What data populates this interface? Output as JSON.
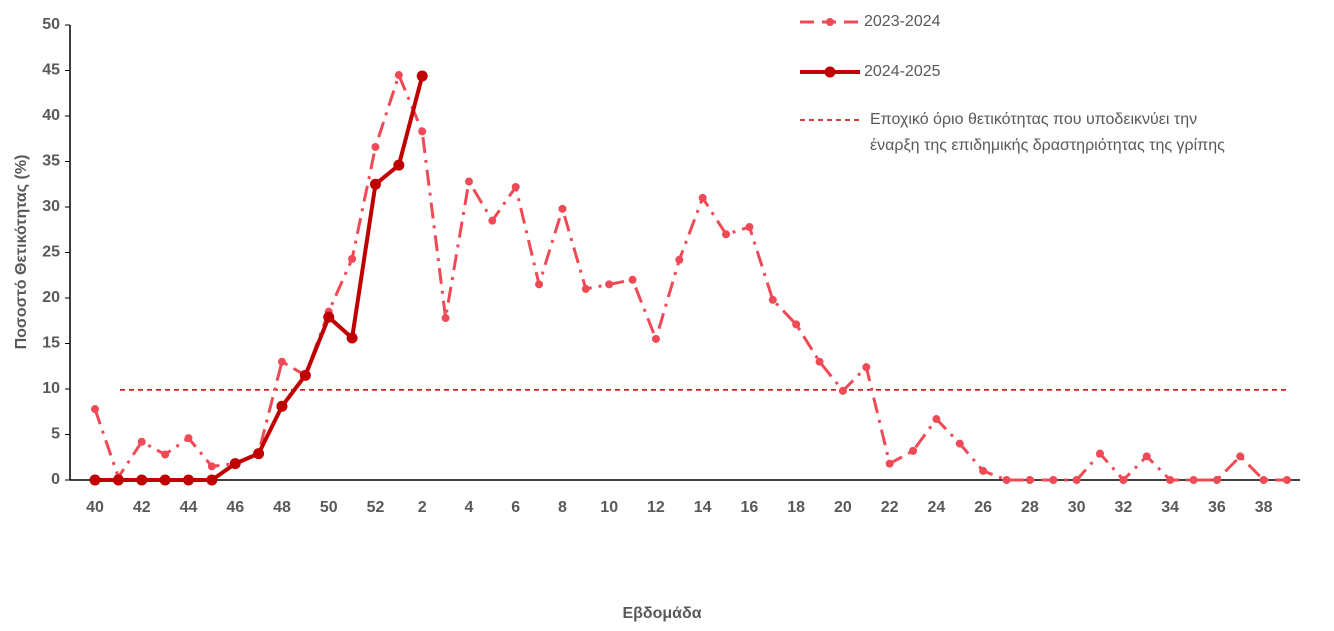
{
  "chart_data": {
    "type": "line",
    "y_label": "Ποσοστό Θετικότητας (%)",
    "x_label": "Εβδομάδα",
    "categories": [
      "40",
      null,
      "42",
      null,
      "44",
      null,
      "46",
      null,
      "48",
      null,
      "50",
      null,
      "52",
      null,
      "2",
      null,
      "4",
      null,
      "6",
      null,
      "8",
      null,
      "10",
      null,
      "12",
      null,
      "14",
      null,
      "16",
      null,
      "18",
      null,
      "20",
      null,
      "22",
      null,
      "24",
      null,
      "26",
      null,
      "28",
      null,
      "30",
      null,
      "32",
      null,
      "34",
      null,
      "36",
      null,
      "38",
      null
    ],
    "series": [
      {
        "name": "2023-2024",
        "color": "#ef4a55",
        "dashed": true,
        "values": [
          7.8,
          0.3,
          4.2,
          2.8,
          4.6,
          1.5,
          1.8,
          3.0,
          13.0,
          11.5,
          18.5,
          24.3,
          36.6,
          44.5,
          38.3,
          17.8,
          32.8,
          28.5,
          32.2,
          21.5,
          29.8,
          21.0,
          21.5,
          22.0,
          15.5,
          24.2,
          31.0,
          27.0,
          27.8,
          19.8,
          17.1,
          13.0,
          9.8,
          12.4,
          1.8,
          3.2,
          6.7,
          4.0,
          1.0,
          0,
          0,
          0,
          0,
          2.9,
          0,
          2.6,
          0,
          0,
          0,
          2.6,
          0,
          0
        ]
      },
      {
        "name": "2024-2025",
        "color": "#c00000",
        "dashed": false,
        "values": [
          0,
          0,
          0,
          0,
          0,
          0,
          1.8,
          2.9,
          8.1,
          11.5,
          17.9,
          15.6,
          32.5,
          34.6,
          44.4,
          null,
          null,
          null,
          null,
          null,
          null,
          null,
          null,
          null,
          null,
          null,
          null,
          null,
          null,
          null,
          null,
          null,
          null,
          null,
          null,
          null,
          null,
          null,
          null,
          null,
          null,
          null,
          null,
          null,
          null,
          null,
          null,
          null,
          null,
          null,
          null,
          null
        ]
      }
    ],
    "threshold": {
      "name": [
        "Εποχικό όριο θετικότητας που υποδεικνύει την",
        "έναρξη της επιδημικής δραστηριότητας της γρίπης"
      ],
      "value": 9.9,
      "color": "#c00000"
    },
    "ylim": [
      0,
      50
    ],
    "yticks": [
      0,
      5,
      10,
      15,
      20,
      25,
      30,
      35,
      40,
      45,
      50
    ],
    "grid": false
  }
}
